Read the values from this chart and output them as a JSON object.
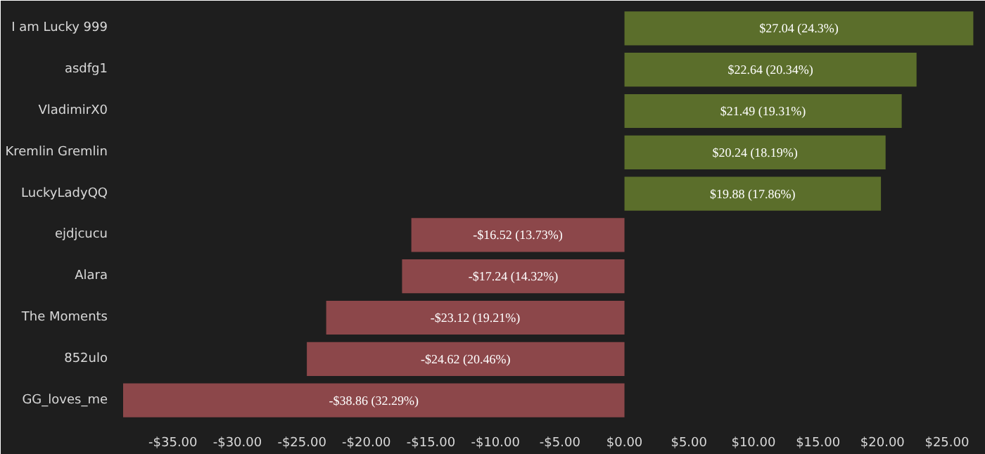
{
  "chart_data": {
    "type": "bar",
    "orientation": "horizontal",
    "categories": [
      "I am Lucky 999",
      "asdfg1",
      "VladimirX0",
      "Kremlin Gremlin",
      "LuckyLadyQQ",
      "ejdjcucu",
      "Alara",
      "The Moments",
      "852ulo",
      "GG_loves_me"
    ],
    "values": [
      27.04,
      22.64,
      21.49,
      20.24,
      19.88,
      -16.52,
      -17.24,
      -23.12,
      -24.62,
      -38.86
    ],
    "colors": [
      "#5b6e2b",
      "#5b6e2b",
      "#5b6e2b",
      "#5b6e2b",
      "#5b6e2b",
      "#8c474a",
      "#8c474a",
      "#8c474a",
      "#8c474a",
      "#8c474a"
    ],
    "value_labels": [
      "$27.04 (24.3%)",
      "$22.64 (20.34%)",
      "$21.49 (19.31%)",
      "$20.24 (18.19%)",
      "$19.88 (17.86%)",
      "-$16.52 (13.73%)",
      "-$17.24 (14.32%)",
      "-$23.12 (19.21%)",
      "-$24.62 (20.46%)",
      "-$38.86 (32.29%)"
    ],
    "xlim": [
      -38.86,
      28
    ],
    "xticks": [
      {
        "value": -35,
        "label": "-$35.00"
      },
      {
        "value": -30,
        "label": "-$30.00"
      },
      {
        "value": -25,
        "label": "-$25.00"
      },
      {
        "value": -20,
        "label": "-$20.00"
      },
      {
        "value": -15,
        "label": "-$15.00"
      },
      {
        "value": -10,
        "label": "-$10.00"
      },
      {
        "value": -5,
        "label": "-$5.00"
      },
      {
        "value": 0,
        "label": "$0.00"
      },
      {
        "value": 5,
        "label": "$5.00"
      },
      {
        "value": 10,
        "label": "$10.00"
      },
      {
        "value": 15,
        "label": "$15.00"
      },
      {
        "value": 20,
        "label": "$20.00"
      },
      {
        "value": 25,
        "label": "$25.00"
      }
    ],
    "grid": false
  }
}
